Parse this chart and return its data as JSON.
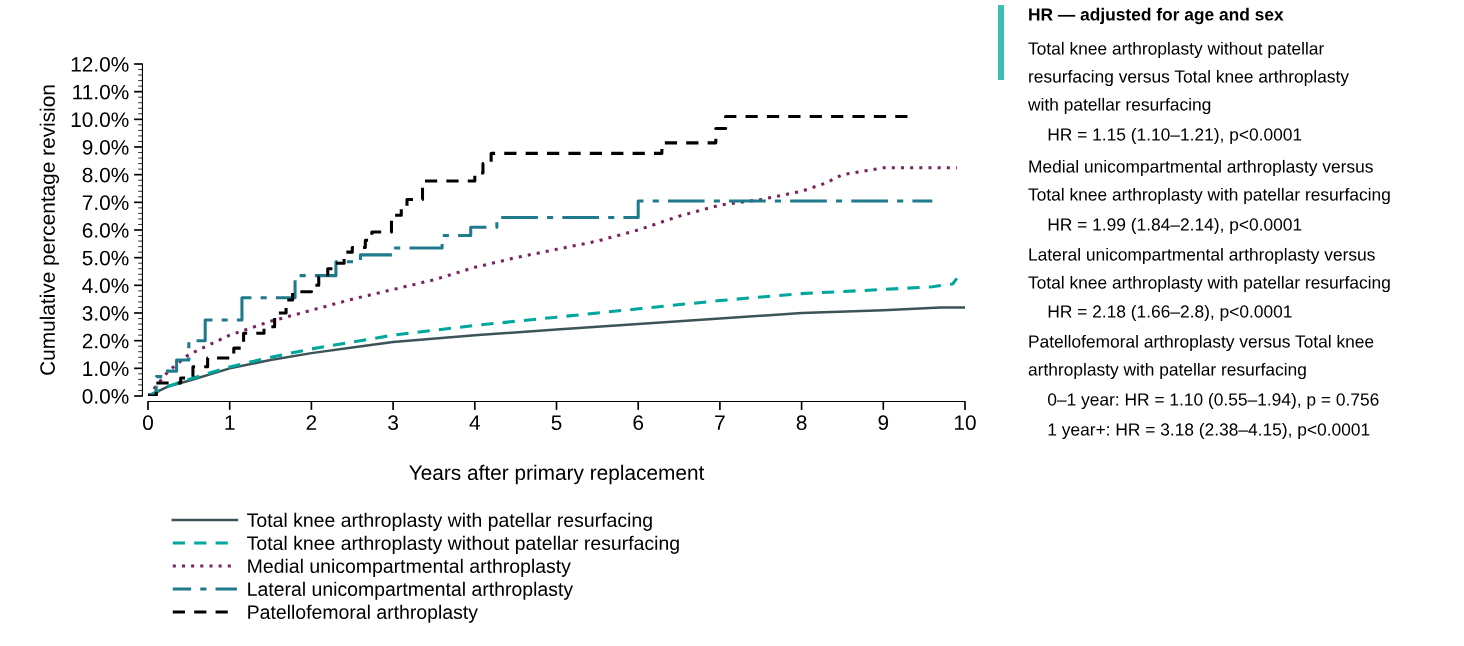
{
  "chart_data": {
    "type": "line",
    "xlabel": "Years after primary replacement",
    "ylabel": "Cumulative percentage revision",
    "xlim": [
      0,
      10
    ],
    "xticks": [
      0,
      1,
      2,
      3,
      4,
      5,
      6,
      7,
      8,
      9,
      10
    ],
    "ylim": [
      0,
      12
    ],
    "yticks": [
      {
        "value": 0,
        "label": "0.0%"
      },
      {
        "value": 1,
        "label": "1.0%"
      },
      {
        "value": 2,
        "label": "2.0%"
      },
      {
        "value": 3,
        "label": "3.0%"
      },
      {
        "value": 4,
        "label": "4.0%"
      },
      {
        "value": 5,
        "label": "5.0%"
      },
      {
        "value": 6,
        "label": "6.0%"
      },
      {
        "value": 7,
        "label": "7.0%"
      },
      {
        "value": 8,
        "label": "8.0%"
      },
      {
        "value": 9,
        "label": "9.0%"
      },
      {
        "value": 10,
        "label": "10.0%"
      },
      {
        "value": 11,
        "label": "11.0%"
      },
      {
        "value": 12,
        "label": "12.0%"
      }
    ],
    "grid": false,
    "legend": "bottom",
    "marker": "none",
    "series": [
      {
        "name": "Total knee arthroplasty with patellar resurfacing",
        "color": "#3d5457",
        "line_style": "solid",
        "x": [
          0,
          0.25,
          0.5,
          1,
          1.5,
          2,
          2.5,
          3,
          4,
          5,
          6,
          7,
          8,
          9,
          9.7,
          10
        ],
        "values": [
          0,
          0.35,
          0.55,
          1.0,
          1.3,
          1.55,
          1.75,
          1.95,
          2.2,
          2.4,
          2.6,
          2.8,
          3.0,
          3.1,
          3.2,
          3.2
        ]
      },
      {
        "name": "Total knee arthroplasty without patellar resurfacing",
        "color": "#00a79d",
        "line_style": "dashed",
        "x": [
          0,
          0.25,
          0.5,
          1,
          1.5,
          2,
          2.5,
          3,
          4,
          5,
          6,
          7,
          8,
          9,
          9.6,
          9.85,
          9.9
        ],
        "values": [
          0,
          0.35,
          0.6,
          1.05,
          1.4,
          1.7,
          1.95,
          2.2,
          2.55,
          2.85,
          3.15,
          3.45,
          3.7,
          3.85,
          3.95,
          4.05,
          4.25
        ]
      },
      {
        "name": "Medial unicompartmental arthroplasty",
        "color": "#7b2260",
        "line_style": "dotted",
        "x": [
          0,
          0.25,
          0.5,
          1,
          1.5,
          2,
          2.5,
          3,
          3.5,
          4,
          4.5,
          5,
          5.5,
          6,
          6.5,
          7,
          7.5,
          8,
          8.3,
          8.5,
          8.8,
          9,
          9.9
        ],
        "values": [
          0,
          0.9,
          1.5,
          2.2,
          2.7,
          3.1,
          3.5,
          3.85,
          4.2,
          4.65,
          5.0,
          5.3,
          5.6,
          6.0,
          6.5,
          6.9,
          7.1,
          7.4,
          7.7,
          8.0,
          8.15,
          8.25,
          8.25
        ]
      },
      {
        "name": "Lateral unicompartmental arthroplasty",
        "color": "#1f7a8c",
        "line_style": "dashdot",
        "type": "step",
        "x": [
          0,
          0.1,
          0.2,
          0.35,
          0.5,
          0.7,
          1.15,
          1.8,
          2.3,
          2.6,
          3.0,
          3.6,
          3.95,
          4.27,
          6.0,
          9.6
        ],
        "values": [
          0,
          0.7,
          0.9,
          1.3,
          2.0,
          2.75,
          3.55,
          4.35,
          4.85,
          5.1,
          5.35,
          5.8,
          6.1,
          6.45,
          7.05,
          7.05
        ]
      },
      {
        "name": "Patellofemoral arthroplasty",
        "color": "#000000",
        "line_style": "dashed",
        "type": "step",
        "x": [
          0,
          0.1,
          0.4,
          0.55,
          0.73,
          1.05,
          1.17,
          1.42,
          1.55,
          1.69,
          1.77,
          2.0,
          2.09,
          2.2,
          2.27,
          2.4,
          2.5,
          2.66,
          2.74,
          2.98,
          3.1,
          3.17,
          3.36,
          4.0,
          4.1,
          4.2,
          6.29,
          6.95,
          7.07,
          9.35
        ],
        "values": [
          0,
          0.47,
          0.65,
          1.06,
          1.37,
          1.73,
          2.27,
          2.5,
          3.0,
          3.47,
          3.77,
          4.0,
          4.3,
          4.6,
          4.8,
          5.2,
          5.37,
          5.63,
          5.93,
          6.53,
          6.8,
          7.1,
          7.77,
          8.06,
          8.4,
          8.77,
          9.15,
          9.67,
          10.1,
          10.1
        ]
      }
    ],
    "annotations": [
      "HR — adjusted for age and sex",
      "Total knee arthroplasty without patellar",
      "resurfacing versus Total knee arthroplasty",
      "with patellar resurfacing",
      "    HR = 1.15 (1.10–1.21), p<0.0001",
      "Medial unicompartmental arthroplasty versus",
      "Total knee arthroplasty with patellar resurfacing",
      "    HR = 1.99 (1.84–2.14), p<0.0001",
      "Lateral unicompartmental arthroplasty versus",
      "Total knee arthroplasty with patellar resurfacing",
      "    HR = 2.18 (1.66–2.8), p<0.0001",
      "Patellofemoral arthroplasty versus Total knee",
      "arthroplasty with patellar resurfacing",
      "    0–1 year: HR = 1.10 (0.55–1.94), p = 0.756",
      "    1 year+: HR = 3.18 (2.38–4.15), p<0.0001"
    ]
  }
}
